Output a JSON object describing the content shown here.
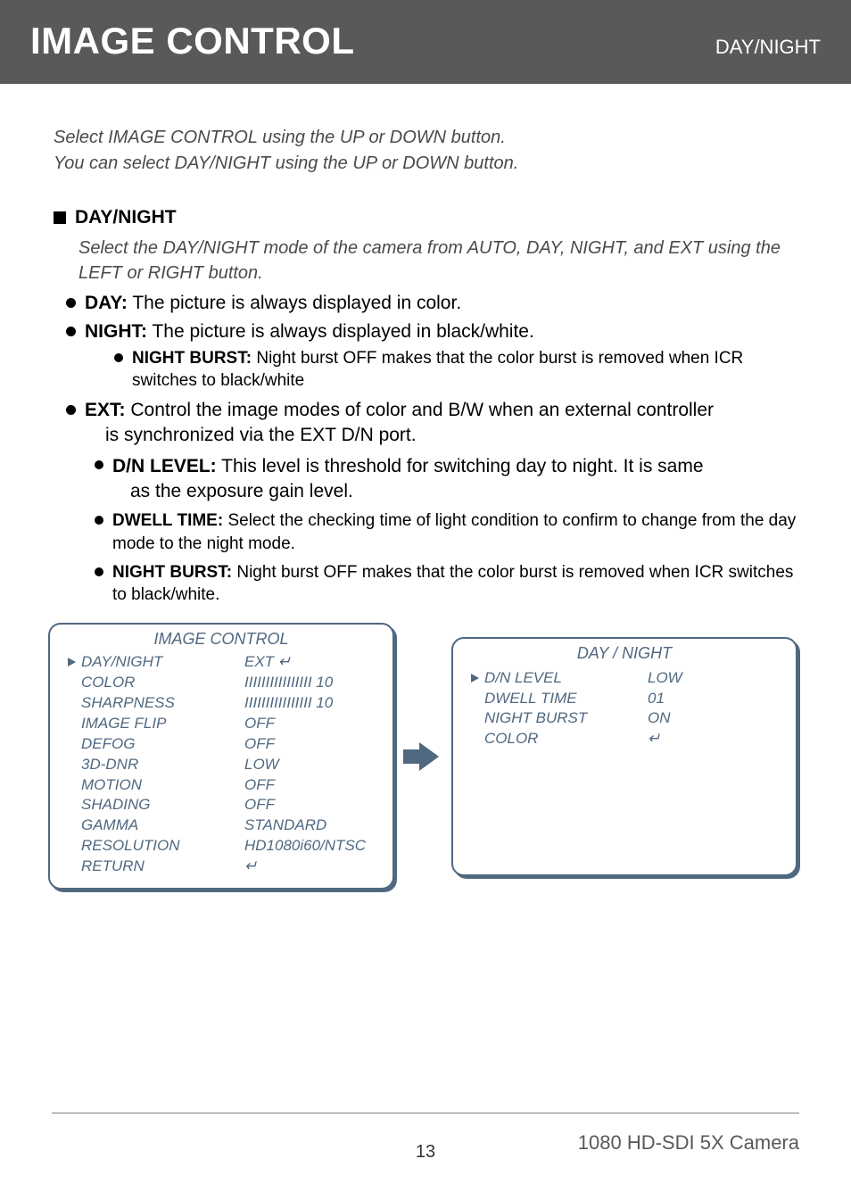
{
  "header": {
    "title": "IMAGE CONTROL",
    "subtitle": "DAY/NIGHT",
    "bg_color": "#595959",
    "text_color": "#ffffff"
  },
  "intro": {
    "line1": "Select IMAGE CONTROL using the UP or DOWN button.",
    "line2": "You can select DAY/NIGHT using the UP or DOWN button."
  },
  "section": {
    "heading": "DAY/NIGHT",
    "note": "Select the DAY/NIGHT mode of the camera from AUTO, DAY, NIGHT, and EXT using the LEFT or RIGHT button."
  },
  "bullets": {
    "day_label": "DAY:",
    "day_text": " The picture is always displayed in color.",
    "night_label": "NIGHT:",
    "night_text": " The picture is always displayed in black/white.",
    "night_burst_label": "NIGHT BURST:",
    "night_burst_text": " Night burst OFF makes that the color burst is removed when ICR switches to black/white",
    "ext_label": "EXT:",
    "ext_text": " Control the image modes of color and B/W when an external controller",
    "ext_cont": "is synchronized via the EXT D/N port.",
    "dn_level_label": "D/N LEVEL:",
    "dn_level_text": " This level is threshold for switching day to night. It is same",
    "dn_level_cont": "as the exposure gain level.",
    "dwell_label": "DWELL TIME:",
    "dwell_text": " Select the checking time of light condition to confirm to change from the day mode to the night mode.",
    "night_burst2_label": "NIGHT BURST:",
    "night_burst2_text": " Night burst OFF makes that the color burst is removed when ICR switches to black/white."
  },
  "panel_left": {
    "title": "IMAGE CONTROL",
    "rows": [
      {
        "label": "DAY/NIGHT",
        "value": "EXT  ↵",
        "selected": true
      },
      {
        "label": "COLOR",
        "value": "IIIIIIIIIIIIIIII 10",
        "selected": false
      },
      {
        "label": "SHARPNESS",
        "value": "IIIIIIIIIIIIIIII 10",
        "selected": false
      },
      {
        "label": "IMAGE FLIP",
        "value": "OFF",
        "selected": false
      },
      {
        "label": "DEFOG",
        "value": "OFF",
        "selected": false
      },
      {
        "label": "3D-DNR",
        "value": "LOW",
        "selected": false
      },
      {
        "label": "MOTION",
        "value": "OFF",
        "selected": false
      },
      {
        "label": "SHADING",
        "value": "OFF",
        "selected": false
      },
      {
        "label": "GAMMA",
        "value": "STANDARD",
        "selected": false
      },
      {
        "label": "RESOLUTION",
        "value": "HD1080i60/NTSC",
        "selected": false
      },
      {
        "label": "RETURN",
        "value": "↵",
        "selected": false
      }
    ],
    "border_color": "#506880",
    "text_color": "#506880"
  },
  "panel_right": {
    "title": "DAY  / NIGHT",
    "rows": [
      {
        "label": "D/N LEVEL",
        "value": "LOW",
        "selected": true
      },
      {
        "label": "DWELL TIME",
        "value": "01",
        "selected": false
      },
      {
        "label": "NIGHT BURST",
        "value": "ON",
        "selected": false
      },
      {
        "label": "COLOR",
        "value": "↵",
        "selected": false
      }
    ],
    "border_color": "#506880",
    "text_color": "#506880"
  },
  "footer": {
    "page": "13",
    "model": "1080 HD-SDI 5X Camera"
  }
}
